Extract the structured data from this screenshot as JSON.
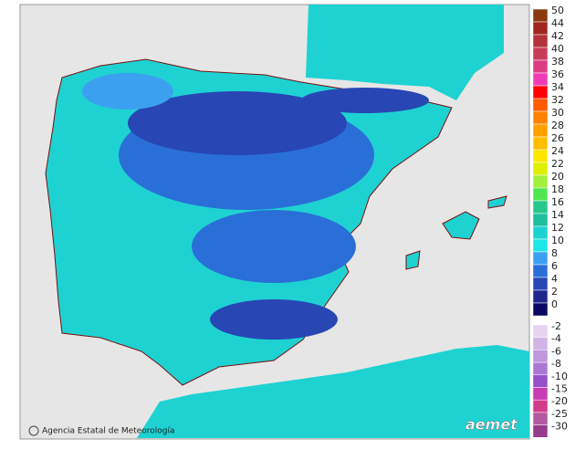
{
  "footer": {
    "agency": "Agencia Estatal de Meteorología",
    "logo": "aemet"
  },
  "legend": {
    "warm": [
      {
        "label": "50",
        "color": "#8b3a0f"
      },
      {
        "label": "44",
        "color": "#a0281e"
      },
      {
        "label": "42",
        "color": "#b4323c"
      },
      {
        "label": "40",
        "color": "#c83c5a"
      },
      {
        "label": "38",
        "color": "#dc3c82"
      },
      {
        "label": "36",
        "color": "#f03cb4"
      },
      {
        "label": "34",
        "color": "#ff0000"
      },
      {
        "label": "32",
        "color": "#ff5a00"
      },
      {
        "label": "30",
        "color": "#ff8200"
      },
      {
        "label": "28",
        "color": "#ffa000"
      },
      {
        "label": "26",
        "color": "#ffbe00"
      },
      {
        "label": "24",
        "color": "#ffe600"
      },
      {
        "label": "22",
        "color": "#dcf000"
      },
      {
        "label": "20",
        "color": "#a0f03c"
      },
      {
        "label": "18",
        "color": "#50e650"
      },
      {
        "label": "16",
        "color": "#28c88c"
      },
      {
        "label": "14",
        "color": "#1ebea0"
      },
      {
        "label": "12",
        "color": "#1ed2d2"
      },
      {
        "label": "10",
        "color": "#1ee6e6"
      },
      {
        "label": "8",
        "color": "#3ca0f0"
      },
      {
        "label": "6",
        "color": "#2a6fd8"
      },
      {
        "label": "4",
        "color": "#2846b4"
      },
      {
        "label": "2",
        "color": "#1e288c"
      },
      {
        "label": "0",
        "color": "#0a0a64"
      }
    ],
    "cold": [
      {
        "label": "-2",
        "color": "#e6d2f0"
      },
      {
        "label": "-4",
        "color": "#d2b4e6"
      },
      {
        "label": "-6",
        "color": "#be96dc"
      },
      {
        "label": "-8",
        "color": "#aa78d2"
      },
      {
        "label": "-10",
        "color": "#9650c8"
      },
      {
        "label": "-15",
        "color": "#c83cb4"
      },
      {
        "label": "-20",
        "color": "#d23c8c"
      },
      {
        "label": "-25",
        "color": "#b45aa0"
      },
      {
        "label": "-30",
        "color": "#963c8c"
      }
    ]
  }
}
